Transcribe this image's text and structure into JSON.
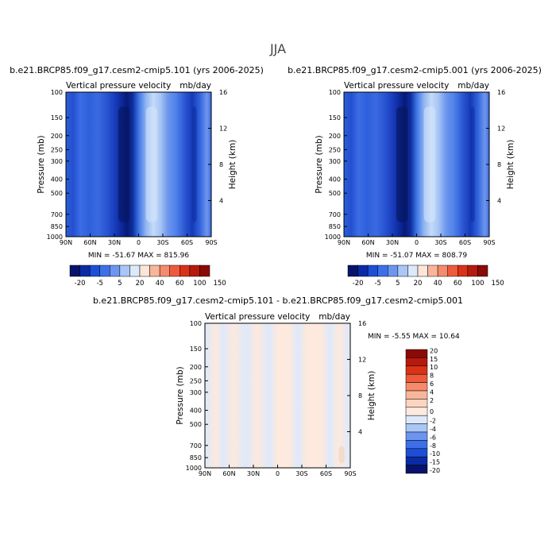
{
  "page": {
    "season": "JJA"
  },
  "chart_data": [
    {
      "type": "heatmap",
      "title": "b.e21.BRCP85.f09_g17.cesm2-cmip5.101 (yrs 2006-2025)",
      "subtitle_left": "Vertical pressure velocity",
      "subtitle_right": "mb/day",
      "ylabel": "Pressure (mb)",
      "ylabel_right": "Height (km)",
      "x_ticks": [
        "90N",
        "60N",
        "30N",
        "0",
        "30S",
        "60S",
        "90S"
      ],
      "y_ticks": [
        "100",
        "150",
        "200",
        "250",
        "300",
        "400",
        "500",
        "700",
        "850",
        "1000"
      ],
      "y_ticks_right": [
        "16",
        "12",
        "8",
        "4"
      ],
      "stats": "MIN = -51.67   MAX = 815.96",
      "colorbar_labels": [
        "-20",
        "-5",
        "5",
        "20",
        "40",
        "60",
        "100",
        "150"
      ]
    },
    {
      "type": "heatmap",
      "title": "b.e21.BRCP85.f09_g17.cesm2-cmip5.001 (yrs 2006-2025)",
      "subtitle_left": "Vertical pressure velocity",
      "subtitle_right": "mb/day",
      "ylabel": "Pressure (mb)",
      "ylabel_right": "Height (km)",
      "x_ticks": [
        "90N",
        "60N",
        "30N",
        "0",
        "30S",
        "60S",
        "90S"
      ],
      "y_ticks": [
        "100",
        "150",
        "200",
        "250",
        "300",
        "400",
        "500",
        "700",
        "850",
        "1000"
      ],
      "y_ticks_right": [
        "16",
        "12",
        "8",
        "4"
      ],
      "stats": "MIN = -51.07   MAX = 808.79",
      "colorbar_labels": [
        "-20",
        "-5",
        "5",
        "20",
        "40",
        "60",
        "100",
        "150"
      ]
    },
    {
      "type": "heatmap",
      "title": "b.e21.BRCP85.f09_g17.cesm2-cmip5.101 - b.e21.BRCP85.f09_g17.cesm2-cmip5.001",
      "subtitle_left": "Vertical pressure velocity",
      "subtitle_right": "mb/day",
      "ylabel": "Pressure (mb)",
      "ylabel_right": "Height (km)",
      "x_ticks": [
        "90N",
        "60N",
        "30N",
        "0",
        "30S",
        "60S",
        "90S"
      ],
      "y_ticks": [
        "100",
        "150",
        "200",
        "250",
        "300",
        "400",
        "500",
        "700",
        "850",
        "1000"
      ],
      "y_ticks_right": [
        "16",
        "12",
        "8",
        "4"
      ],
      "stats": "MIN =   -5.55   MAX =   10.64",
      "colorbar_labels": [
        "20",
        "15",
        "10",
        "8",
        "6",
        "4",
        "2",
        "0",
        "-2",
        "-4",
        "-6",
        "-8",
        "-10",
        "-15",
        "-20"
      ]
    }
  ],
  "colors": {
    "top_scale": [
      "#08136b",
      "#0a2aa6",
      "#1c4fd6",
      "#3d6fe8",
      "#6c95f0",
      "#a9c6f7",
      "#dce9fb",
      "#fde5d8",
      "#f9b59a",
      "#f58b6c",
      "#ee5a3c",
      "#d93218",
      "#b51a0c",
      "#8a0a05"
    ],
    "diff_scale": [
      "#8a0a05",
      "#b51a0c",
      "#d93218",
      "#ee5a3c",
      "#f58b6c",
      "#f9b59a",
      "#fcd5c0",
      "#fde9dd",
      "#dde9fb",
      "#a9c6f7",
      "#6c95f0",
      "#3d6fe8",
      "#1c4fd6",
      "#0a2aa6",
      "#08136b"
    ]
  }
}
